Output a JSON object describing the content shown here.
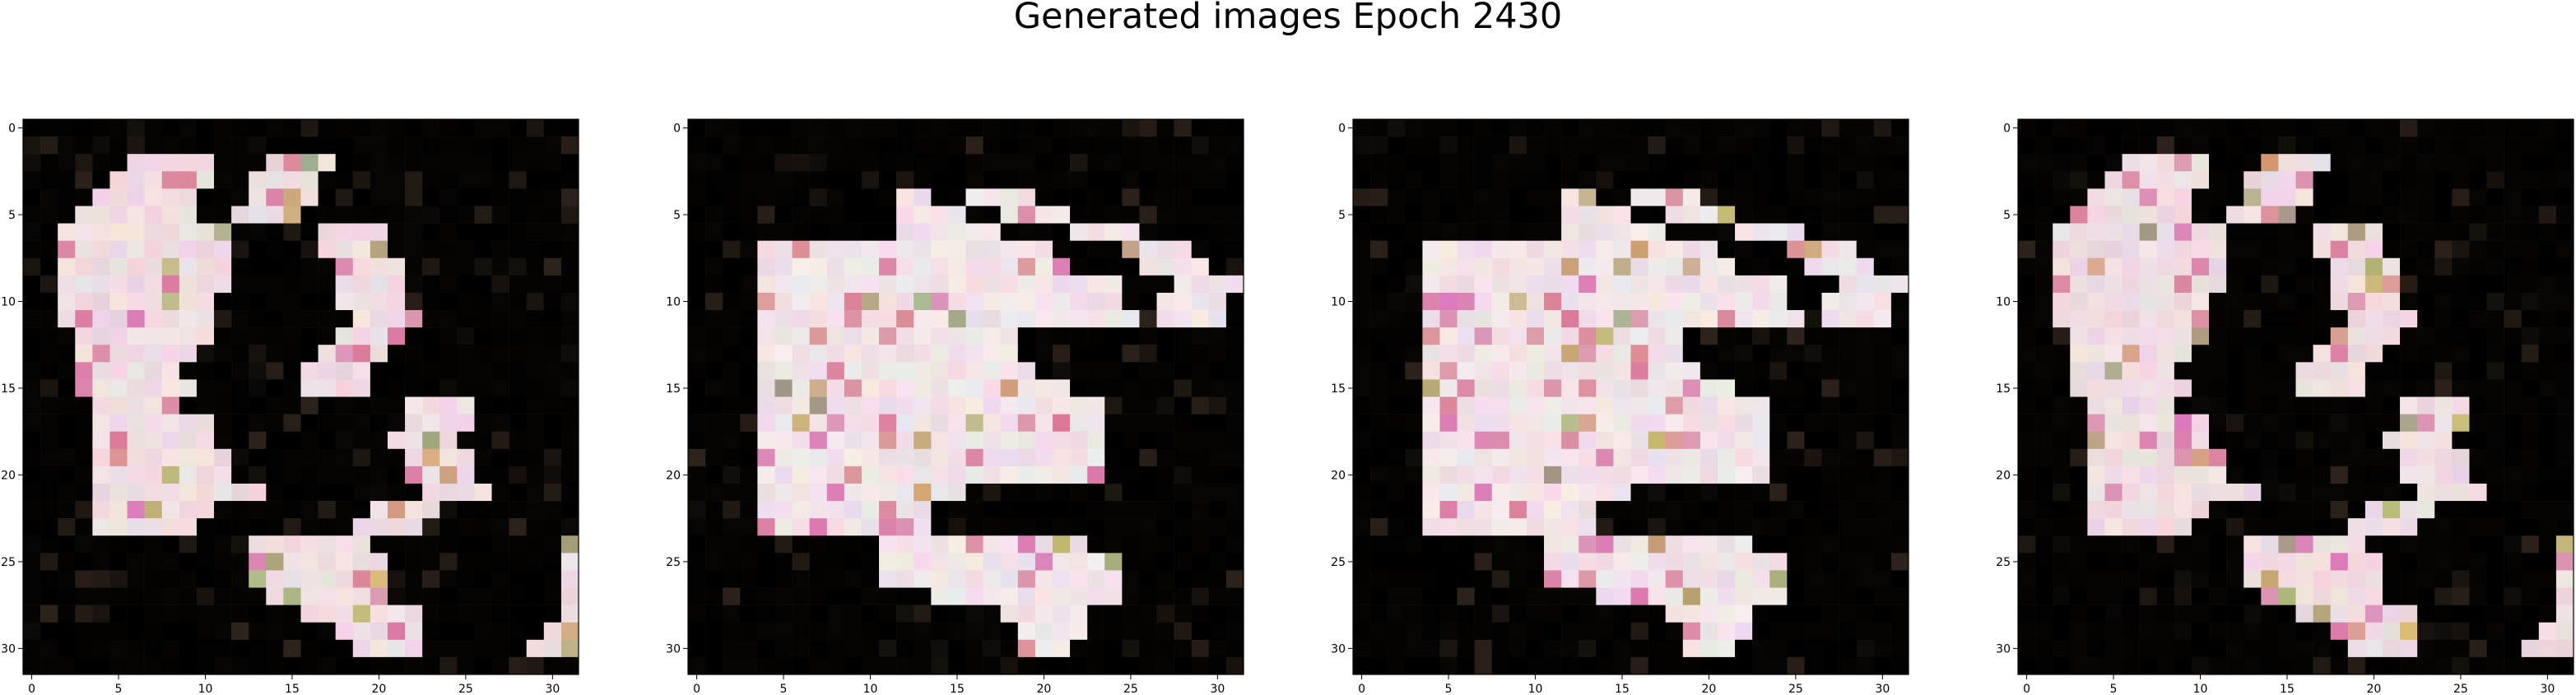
{
  "figure": {
    "title": "Generated images Epoch 2430"
  },
  "chart_data": [
    {
      "type": "heatmap",
      "grid_size": [
        32,
        32
      ],
      "xlim": [
        -0.5,
        31.5
      ],
      "ylim": [
        31.5,
        -0.5
      ],
      "x_ticks": [
        "0",
        "5",
        "10",
        "15",
        "20",
        "25",
        "30"
      ],
      "y_ticks": [
        "0",
        "5",
        "10",
        "15",
        "20",
        "25",
        "30"
      ],
      "background_color": "#000000",
      "foreground_color": "#f7e7ea"
    },
    {
      "type": "heatmap",
      "grid_size": [
        32,
        32
      ],
      "xlim": [
        -0.5,
        31.5
      ],
      "ylim": [
        31.5,
        -0.5
      ],
      "x_ticks": [
        "0",
        "5",
        "10",
        "15",
        "20",
        "25",
        "30"
      ],
      "y_ticks": [
        "0",
        "5",
        "10",
        "15",
        "20",
        "25",
        "30"
      ],
      "background_color": "#000000",
      "foreground_color": "#f9eef0"
    },
    {
      "type": "heatmap",
      "grid_size": [
        32,
        32
      ],
      "xlim": [
        -0.5,
        31.5
      ],
      "ylim": [
        31.5,
        -0.5
      ],
      "x_ticks": [
        "0",
        "5",
        "10",
        "15",
        "20",
        "25",
        "30"
      ],
      "y_ticks": [
        "0",
        "5",
        "10",
        "15",
        "20",
        "25",
        "30"
      ],
      "background_color": "#000000",
      "foreground_color": "#f9eef0"
    },
    {
      "type": "heatmap",
      "grid_size": [
        32,
        32
      ],
      "xlim": [
        -0.5,
        31.5
      ],
      "ylim": [
        31.5,
        -0.5
      ],
      "x_ticks": [
        "0",
        "5",
        "10",
        "15",
        "20",
        "25",
        "30"
      ],
      "y_ticks": [
        "0",
        "5",
        "10",
        "15",
        "20",
        "25",
        "30"
      ],
      "background_color": "#000000",
      "foreground_color": "#f7e7ea"
    }
  ]
}
